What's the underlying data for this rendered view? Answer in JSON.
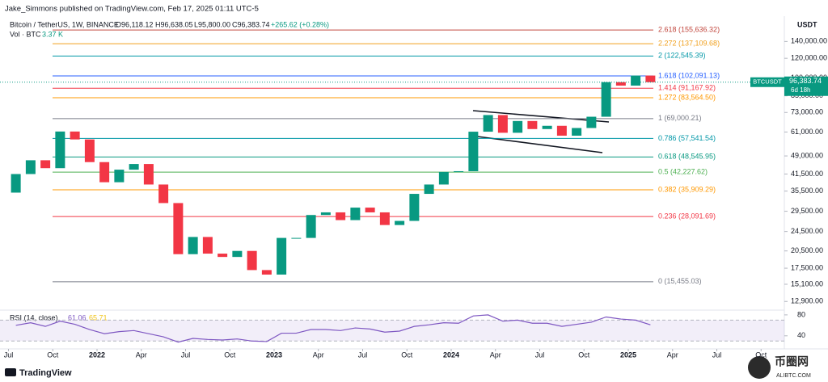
{
  "header": {
    "publisher": "Jake_Simmons published on TradingView.com, Feb 17, 2025 01:11 UTC-5"
  },
  "chart_data": {
    "type": "candlestick",
    "symbol": "Bitcoin / TetherUS, 1W, BINANCE",
    "legend_open": "O96,118.12",
    "legend_high": "H96,638.05",
    "legend_low": "L95,800.00",
    "legend_close": "C96,383.74",
    "legend_change": "+265.62 (+0.28%)",
    "volume_label": "Vol · BTC",
    "volume_value": "3.37 K",
    "axis_unit": "USDT",
    "x": [
      "2021-07",
      "2021-08",
      "2021-09",
      "2021-10",
      "2021-11",
      "2021-12",
      "2022-01",
      "2022-02",
      "2022-03",
      "2022-04",
      "2022-05",
      "2022-06",
      "2022-07",
      "2022-08",
      "2022-09",
      "2022-10",
      "2022-11",
      "2022-12",
      "2023-01",
      "2023-02",
      "2023-03",
      "2023-04",
      "2023-05",
      "2023-06",
      "2023-07",
      "2023-08",
      "2023-09",
      "2023-10",
      "2023-11",
      "2023-12",
      "2024-01",
      "2024-02",
      "2024-03",
      "2024-04",
      "2024-05",
      "2024-06",
      "2024-07",
      "2024-08",
      "2024-09",
      "2024-10",
      "2024-11",
      "2024-12",
      "2025-01",
      "2025-02"
    ],
    "open": [
      35000,
      41500,
      47100,
      43800,
      61300,
      57000,
      46300,
      38500,
      43200,
      45500,
      37700,
      31800,
      19900,
      23300,
      20000,
      19400,
      20500,
      17200,
      16500,
      23100,
      23100,
      28500,
      29200,
      27200,
      30500,
      29200,
      26000,
      27000,
      34600,
      37700,
      42300,
      42600,
      61200,
      71300,
      60600,
      67500,
      62700,
      64600,
      59000,
      63300,
      70200,
      96400,
      93400,
      102400
    ],
    "close": [
      41500,
      47100,
      43800,
      61300,
      57000,
      46300,
      38500,
      43200,
      45500,
      37700,
      31800,
      19900,
      23300,
      20000,
      19400,
      20500,
      17200,
      16500,
      23100,
      23100,
      28500,
      29200,
      27200,
      30500,
      29200,
      26000,
      27000,
      34600,
      37700,
      42300,
      42600,
      61200,
      71300,
      60600,
      67500,
      62700,
      64600,
      59000,
      63300,
      70200,
      96400,
      93400,
      102400,
      96383.74
    ],
    "up_color": "#089981",
    "down_color": "#f23645",
    "log_scale": true,
    "ylim": [
      12000,
      164000
    ],
    "yticks": [
      {
        "value": 140000,
        "label": "140,000.00"
      },
      {
        "value": 120000,
        "label": "120,000.00"
      },
      {
        "value": 100000,
        "label": "100,000.00"
      },
      {
        "value": 85000,
        "label": "85,000.00"
      },
      {
        "value": 73000,
        "label": "73,000.00"
      },
      {
        "value": 61000,
        "label": "61,000.00"
      },
      {
        "value": 49000,
        "label": "49,000.00"
      },
      {
        "value": 41500,
        "label": "41,500.00"
      },
      {
        "value": 35500,
        "label": "35,500.00"
      },
      {
        "value": 29500,
        "label": "29,500.00"
      },
      {
        "value": 24500,
        "label": "24,500.00"
      },
      {
        "value": 20500,
        "label": "20,500.00"
      },
      {
        "value": 17500,
        "label": "17,500.00"
      },
      {
        "value": 15100,
        "label": "15,100.00"
      },
      {
        "value": 12900,
        "label": "12,900.00"
      }
    ],
    "xticks": [
      {
        "value": "2021-07",
        "label": "Jul"
      },
      {
        "value": "2021-10",
        "label": "Oct"
      },
      {
        "value": "2022-01",
        "label": "2022"
      },
      {
        "value": "2022-04",
        "label": "Apr"
      },
      {
        "value": "2022-07",
        "label": "Jul"
      },
      {
        "value": "2022-10",
        "label": "Oct"
      },
      {
        "value": "2023-01",
        "label": "2023"
      },
      {
        "value": "2023-04",
        "label": "Apr"
      },
      {
        "value": "2023-07",
        "label": "Jul"
      },
      {
        "value": "2023-10",
        "label": "Oct"
      },
      {
        "value": "2024-01",
        "label": "2024"
      },
      {
        "value": "2024-04",
        "label": "Apr"
      },
      {
        "value": "2024-07",
        "label": "Jul"
      },
      {
        "value": "2024-10",
        "label": "Oct"
      },
      {
        "value": "2025-01",
        "label": "2025"
      },
      {
        "value": "2025-04",
        "label": "Apr"
      },
      {
        "value": "2025-07",
        "label": "Jul"
      },
      {
        "value": "2025-10",
        "label": "Oct"
      }
    ],
    "fib_levels": [
      {
        "value": 155636.32,
        "label": "2.618 (155,636.32)",
        "color": "#c2483f"
      },
      {
        "value": 137109.68,
        "label": "2.272 (137,109.68)",
        "color": "#f0a01e"
      },
      {
        "value": 122545.39,
        "label": "2 (122,545.39)",
        "color": "#0097a7"
      },
      {
        "value": 102091.13,
        "label": "1.618 (102,091.13)",
        "color": "#2962ff"
      },
      {
        "value": 91167.92,
        "label": "1.414 (91,167.92)",
        "color": "#f23645"
      },
      {
        "value": 83564.5,
        "label": "1.272 (83,564.50)",
        "color": "#ff9800"
      },
      {
        "value": 69000.21,
        "label": "1 (69,000.21)",
        "color": "#787b86"
      },
      {
        "value": 57541.54,
        "label": "0.786 (57,541.54)",
        "color": "#0097a7"
      },
      {
        "value": 48545.95,
        "label": "0.618 (48,545.95)",
        "color": "#089981"
      },
      {
        "value": 42227.62,
        "label": "0.5 (42,227.62)",
        "color": "#4caf50"
      },
      {
        "value": 35909.29,
        "label": "0.382 (35,909.29)",
        "color": "#ff9800"
      },
      {
        "value": 28091.69,
        "label": "0.236 (28,091.69)",
        "color": "#f23645"
      },
      {
        "value": 15455.03,
        "label": "0 (15,455.03)",
        "color": "#787b86"
      }
    ],
    "last_price": {
      "symbol": "BTCUSDT",
      "value": 96383.74,
      "label": "96,383.74",
      "countdown": "6d 18h",
      "color": "#089981"
    },
    "rsi": {
      "title": "RSI (14, close)",
      "value_label": "61.06",
      "ma_label": "65.71",
      "color": "#7e57c2",
      "values": [
        60,
        65,
        58,
        68,
        62,
        52,
        44,
        48,
        50,
        44,
        38,
        28,
        35,
        33,
        32,
        34,
        30,
        29,
        45,
        45,
        52,
        52,
        50,
        55,
        53,
        47,
        49,
        58,
        61,
        65,
        64,
        78,
        80,
        68,
        70,
        64,
        64,
        58,
        62,
        66,
        76,
        72,
        70,
        61
      ],
      "ylim": [
        15,
        86
      ],
      "yticks": [
        80,
        40
      ],
      "band": [
        30,
        70
      ]
    }
  },
  "footer": {
    "brand": "TradingView"
  },
  "watermark": {
    "name": "币圈网",
    "site": "ALIBTC.COM"
  }
}
